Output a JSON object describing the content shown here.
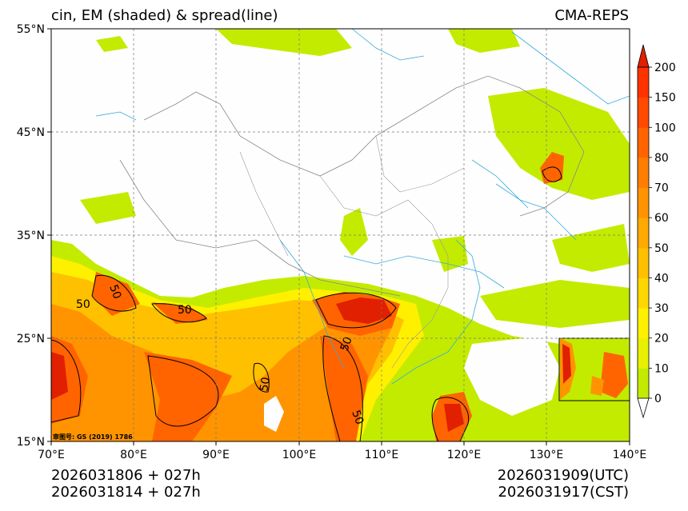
{
  "title_left": "cin, EM (shaded) & spread(line)",
  "title_right": "CMA-REPS",
  "map_note": "审图号: GS (2019) 1786",
  "lat_labels": [
    "55°N",
    "45°N",
    "35°N",
    "25°N",
    "15°N"
  ],
  "lon_labels": [
    "70°E",
    "80°E",
    "90°E",
    "100°E",
    "110°E",
    "120°E",
    "130°E",
    "140°E"
  ],
  "colorbar": {
    "levels": [
      "0",
      "10",
      "20",
      "30",
      "40",
      "50",
      "60",
      "70",
      "80",
      "100",
      "150",
      "200"
    ],
    "colors": [
      "#ffffff",
      "#c3eb00",
      "#e6f000",
      "#fff000",
      "#ffd700",
      "#ffc000",
      "#ffaa00",
      "#ff9400",
      "#ff7e00",
      "#ff6400",
      "#ff4a00",
      "#ff3200",
      "#e02000"
    ]
  },
  "contour_labels": [
    "50",
    "50",
    "50",
    "50",
    "50",
    "50"
  ],
  "bottom_left": [
    "2026031806  +  027h",
    "2026031814  +  027h"
  ],
  "bottom_right": [
    "2026031909(UTC)",
    "2026031917(CST)"
  ]
}
